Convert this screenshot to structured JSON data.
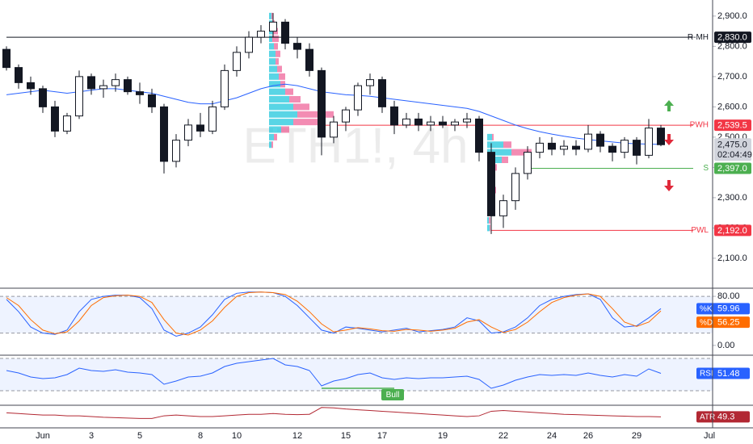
{
  "chart_data": [
    {
      "type": "candlestick",
      "symbol": "ETH1!, 4h",
      "xlim": [
        -0.5,
        58.5
      ],
      "xticks": [
        {
          "value": 3,
          "label": "Jun"
        },
        {
          "value": 7,
          "label": "3"
        },
        {
          "value": 11,
          "label": "5"
        },
        {
          "value": 16,
          "label": "8"
        },
        {
          "value": 19,
          "label": "10"
        },
        {
          "value": 24,
          "label": "12"
        },
        {
          "value": 28,
          "label": "15"
        },
        {
          "value": 31,
          "label": "17"
        },
        {
          "value": 36,
          "label": "19"
        },
        {
          "value": 41,
          "label": "22"
        },
        {
          "value": 45,
          "label": "24"
        },
        {
          "value": 48,
          "label": "26"
        },
        {
          "value": 52,
          "label": "29"
        },
        {
          "value": 58,
          "label": "Jul"
        }
      ],
      "ylim": [
        2001,
        2953
      ],
      "yticks": [
        {
          "value": 2100,
          "label": "2,100.0"
        },
        {
          "value": 2200,
          "label": "2,200.0"
        },
        {
          "value": 2300,
          "label": "2,300.0"
        },
        {
          "value": 2400,
          "label": "2,400.0"
        },
        {
          "value": 2500,
          "label": "2,500.0"
        },
        {
          "value": 2600,
          "label": "2,600.0"
        },
        {
          "value": 2700,
          "label": "2,700.0"
        },
        {
          "value": 2800,
          "label": "2,800.0"
        },
        {
          "value": 2900,
          "label": "2,900.0"
        }
      ],
      "ohlc": [
        [
          2790,
          2800,
          2720,
          2730
        ],
        [
          2730,
          2740,
          2660,
          2680
        ],
        [
          2680,
          2700,
          2640,
          2660
        ],
        [
          2660,
          2670,
          2580,
          2600
        ],
        [
          2600,
          2620,
          2500,
          2520
        ],
        [
          2520,
          2580,
          2510,
          2570
        ],
        [
          2570,
          2720,
          2560,
          2700
        ],
        [
          2700,
          2710,
          2640,
          2660
        ],
        [
          2660,
          2690,
          2630,
          2670
        ],
        [
          2670,
          2710,
          2650,
          2690
        ],
        [
          2690,
          2700,
          2640,
          2650
        ],
        [
          2650,
          2680,
          2610,
          2640
        ],
        [
          2640,
          2660,
          2580,
          2600
        ],
        [
          2600,
          2610,
          2380,
          2420
        ],
        [
          2420,
          2510,
          2400,
          2490
        ],
        [
          2490,
          2560,
          2470,
          2540
        ],
        [
          2540,
          2580,
          2500,
          2520
        ],
        [
          2520,
          2620,
          2510,
          2600
        ],
        [
          2600,
          2740,
          2590,
          2720
        ],
        [
          2720,
          2800,
          2700,
          2780
        ],
        [
          2780,
          2850,
          2760,
          2830
        ],
        [
          2830,
          2870,
          2810,
          2850
        ],
        [
          2850,
          2910,
          2830,
          2880
        ],
        [
          2880,
          2890,
          2790,
          2810
        ],
        [
          2810,
          2830,
          2760,
          2790
        ],
        [
          2790,
          2810,
          2700,
          2720
        ],
        [
          2720,
          2730,
          2440,
          2500
        ],
        [
          2500,
          2570,
          2480,
          2550
        ],
        [
          2550,
          2600,
          2520,
          2590
        ],
        [
          2590,
          2680,
          2570,
          2670
        ],
        [
          2670,
          2710,
          2640,
          2690
        ],
        [
          2690,
          2700,
          2580,
          2600
        ],
        [
          2600,
          2620,
          2510,
          2540
        ],
        [
          2540,
          2580,
          2530,
          2560
        ],
        [
          2560,
          2580,
          2520,
          2540
        ],
        [
          2540,
          2570,
          2520,
          2550
        ],
        [
          2550,
          2570,
          2530,
          2540
        ],
        [
          2540,
          2560,
          2520,
          2550
        ],
        [
          2550,
          2580,
          2530,
          2560
        ],
        [
          2560,
          2570,
          2420,
          2450
        ],
        [
          2450,
          2480,
          2180,
          2240
        ],
        [
          2240,
          2310,
          2200,
          2290
        ],
        [
          2290,
          2400,
          2260,
          2380
        ],
        [
          2380,
          2470,
          2360,
          2450
        ],
        [
          2450,
          2500,
          2430,
          2480
        ],
        [
          2480,
          2500,
          2440,
          2460
        ],
        [
          2460,
          2490,
          2440,
          2470
        ],
        [
          2470,
          2490,
          2440,
          2460
        ],
        [
          2460,
          2540,
          2450,
          2510
        ],
        [
          2510,
          2520,
          2450,
          2470
        ],
        [
          2470,
          2480,
          2420,
          2450
        ],
        [
          2450,
          2500,
          2430,
          2490
        ],
        [
          2490,
          2500,
          2410,
          2440
        ],
        [
          2440,
          2560,
          2430,
          2530
        ],
        [
          2530,
          2540,
          2470,
          2475
        ]
      ],
      "ma": {
        "color": "#2962ff",
        "values": [
          2640,
          2645,
          2650,
          2655,
          2650,
          2645,
          2650,
          2655,
          2660,
          2660,
          2655,
          2650,
          2645,
          2635,
          2625,
          2615,
          2610,
          2610,
          2620,
          2630,
          2645,
          2660,
          2670,
          2675,
          2670,
          2660,
          2650,
          2645,
          2640,
          2638,
          2635,
          2630,
          2625,
          2620,
          2615,
          2610,
          2605,
          2600,
          2595,
          2585,
          2570,
          2555,
          2540,
          2528,
          2518,
          2510,
          2503,
          2497,
          2492,
          2488,
          2484,
          2480,
          2478,
          2477,
          2476
        ]
      },
      "profiles": [
        {
          "from": 22,
          "rows": [
            [
              2900,
              3,
              2
            ],
            [
              2875,
              4,
              3
            ],
            [
              2850,
              5,
              6
            ],
            [
              2825,
              4,
              8
            ],
            [
              2800,
              6,
              5
            ],
            [
              2775,
              8,
              6
            ],
            [
              2750,
              8,
              4
            ],
            [
              2725,
              10,
              6
            ],
            [
              2700,
              12,
              8
            ],
            [
              2675,
              14,
              6
            ],
            [
              2650,
              20,
              10
            ],
            [
              2625,
              25,
              14
            ],
            [
              2600,
              30,
              20
            ],
            [
              2575,
              35,
              45
            ],
            [
              2550,
              30,
              40
            ],
            [
              2525,
              15,
              10
            ],
            [
              2500,
              6,
              4
            ],
            [
              2475,
              3,
              2
            ]
          ]
        },
        {
          "from": 40,
          "rows": [
            [
              2500,
              6,
              2
            ],
            [
              2475,
              20,
              10
            ],
            [
              2450,
              30,
              25
            ],
            [
              2425,
              18,
              8
            ],
            [
              2400,
              8,
              4
            ],
            [
              2375,
              4,
              3
            ],
            [
              2350,
              4,
              4
            ],
            [
              2325,
              5,
              6
            ],
            [
              2300,
              3,
              4
            ],
            [
              2275,
              4,
              3
            ],
            [
              2250,
              3,
              2
            ],
            [
              2225,
              2,
              2
            ],
            [
              2200,
              3,
              1
            ]
          ]
        }
      ],
      "levels": [
        {
          "name": "R-MH",
          "value": 2830,
          "value_label": "2,830.0",
          "color": "#131722",
          "from": 0
        },
        {
          "name": "PWH",
          "value": 2539.5,
          "value_label": "2,539.5",
          "color": "#f23645",
          "from": 26
        },
        {
          "name": "S",
          "value": 2397,
          "value_label": "2,397.0",
          "color": "#4caf50",
          "from": 43
        },
        {
          "name": "PWL",
          "value": 2192,
          "value_label": "2,192.0",
          "color": "#f23645",
          "from": 40
        }
      ],
      "last": {
        "value": 2475,
        "label": "2,475.0",
        "countdown": "02:04:49"
      }
    },
    {
      "type": "stochastic",
      "ylim": [
        -16,
        93.3
      ],
      "yticks": [
        {
          "value": 0,
          "label": "0.00"
        },
        {
          "value": 80,
          "label": "80.00"
        }
      ],
      "band": [
        20,
        80
      ],
      "series": [
        {
          "name": "%K",
          "color": "#2962ff",
          "values": [
            75,
            55,
            30,
            20,
            18,
            25,
            55,
            75,
            80,
            82,
            82,
            78,
            60,
            25,
            15,
            20,
            30,
            50,
            75,
            85,
            87,
            87,
            86,
            80,
            65,
            45,
            25,
            20,
            30,
            28,
            25,
            22,
            25,
            28,
            22,
            24,
            26,
            30,
            45,
            40,
            20,
            22,
            30,
            45,
            65,
            75,
            80,
            83,
            84,
            75,
            45,
            30,
            32,
            45,
            59.96
          ]
        },
        {
          "name": "%D",
          "color": "#ff6d00",
          "values": [
            78,
            65,
            42,
            25,
            19,
            22,
            40,
            65,
            78,
            81,
            82,
            80,
            70,
            42,
            20,
            17,
            25,
            40,
            62,
            80,
            86,
            87,
            86,
            83,
            72,
            55,
            35,
            22,
            25,
            29,
            27,
            24,
            23,
            26,
            25,
            23,
            25,
            28,
            38,
            42,
            30,
            21,
            26,
            38,
            55,
            70,
            78,
            82,
            84,
            80,
            60,
            38,
            31,
            38,
            56.25
          ]
        }
      ]
    },
    {
      "type": "rsi",
      "ylim": [
        12,
        74
      ],
      "band": [
        30,
        70
      ],
      "series": [
        {
          "name": "RSI",
          "color": "#2962ff",
          "values": [
            55,
            52,
            47,
            45,
            46,
            50,
            58,
            55,
            54,
            56,
            53,
            52,
            50,
            38,
            42,
            47,
            48,
            52,
            60,
            64,
            66,
            68,
            70,
            62,
            60,
            55,
            36,
            42,
            45,
            50,
            52,
            46,
            44,
            46,
            45,
            46,
            46,
            47,
            48,
            44,
            33,
            37,
            43,
            47,
            50,
            49,
            50,
            49,
            52,
            49,
            47,
            50,
            48,
            57,
            51.48
          ]
        }
      ],
      "annotation": {
        "text": "Bull",
        "from": 26,
        "to": 32,
        "color": "#4caf50"
      }
    },
    {
      "type": "atr",
      "ylim": [
        20,
        80
      ],
      "series": [
        {
          "name": "ATR",
          "color": "#b22833",
          "values": [
            60,
            58,
            56,
            54,
            54,
            52,
            52,
            50,
            48,
            47,
            46,
            45,
            45,
            52,
            54,
            52,
            50,
            50,
            52,
            54,
            56,
            56,
            58,
            56,
            55,
            56,
            74,
            73,
            70,
            68,
            66,
            64,
            62,
            60,
            58,
            56,
            54,
            52,
            50,
            52,
            64,
            66,
            64,
            62,
            60,
            58,
            56,
            55,
            54,
            53,
            52,
            51,
            50,
            50,
            49.3
          ]
        }
      ]
    }
  ]
}
